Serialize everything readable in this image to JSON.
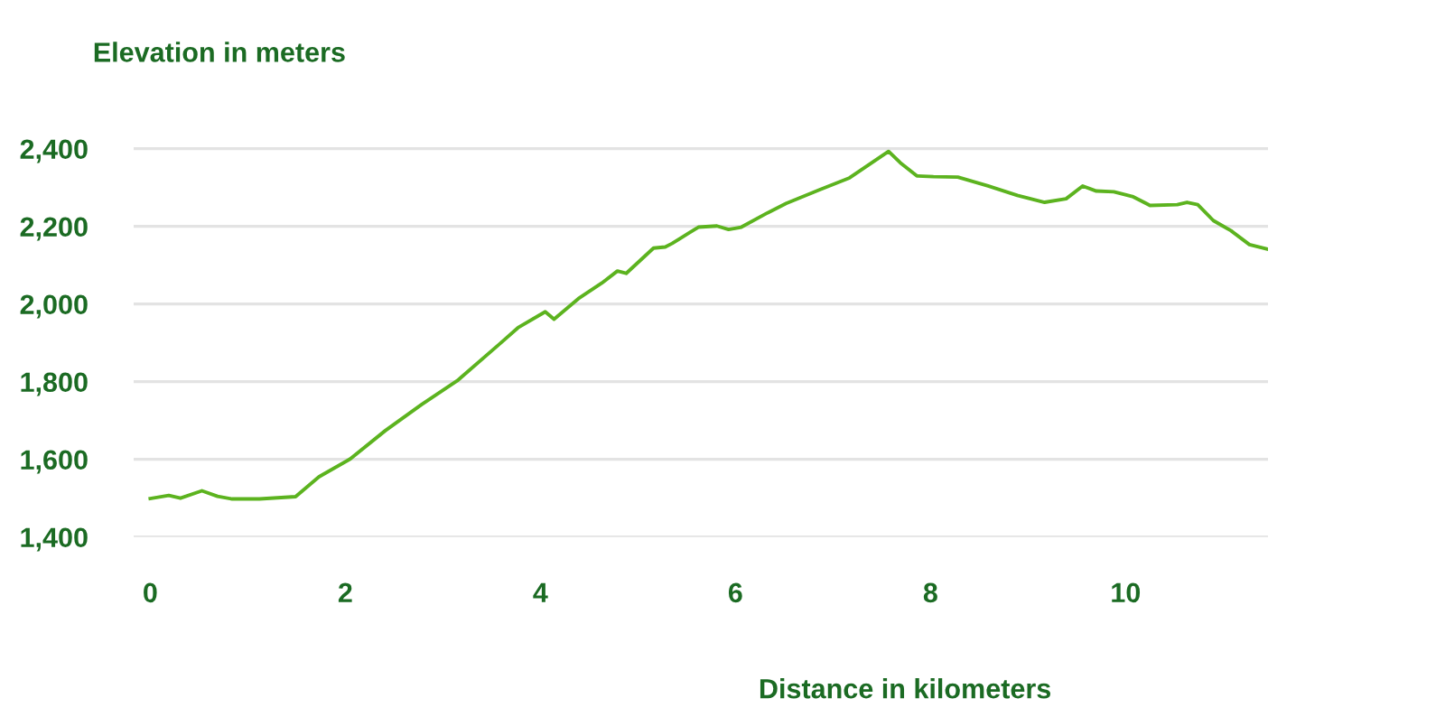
{
  "chart_data": {
    "type": "line",
    "xlabel": "Distance in kilometers",
    "ylabel": "Elevation in meters",
    "x": [
      0,
      0.19,
      0.31,
      0.53,
      0.69,
      0.84,
      1.12,
      1.49,
      1.73,
      2.05,
      2.41,
      2.78,
      3.15,
      3.59,
      3.77,
      4.05,
      4.14,
      4.39,
      4.63,
      4.79,
      4.88,
      5.16,
      5.28,
      5.35,
      5.44,
      5.62,
      5.81,
      5.93,
      6.06,
      6.33,
      6.52,
      6.86,
      7.17,
      7.57,
      7.69,
      7.86,
      8.03,
      8.28,
      8.59,
      8.89,
      9.17,
      9.39,
      9.56,
      9.7,
      9.88,
      10.07,
      10.25,
      10.53,
      10.63,
      10.74,
      10.9,
      11.08,
      11.27,
      11.46
    ],
    "series": [
      {
        "color": "#5cb31f",
        "values": [
          1499,
          1507,
          1500,
          1519,
          1505,
          1498,
          1498,
          1504,
          1555,
          1601,
          1674,
          1741,
          1803,
          1899,
          1939,
          1980,
          1961,
          2014,
          2054,
          2085,
          2079,
          2144,
          2147,
          2156,
          2170,
          2198,
          2201,
          2192,
          2198,
          2235,
          2259,
          2294,
          2325,
          2393,
          2364,
          2330,
          2328,
          2327,
          2304,
          2280,
          2262,
          2271,
          2304,
          2291,
          2289,
          2277,
          2254,
          2256,
          2262,
          2256,
          2215,
          2189,
          2153,
          2141
        ]
      }
    ],
    "xlim": [
      -0.17,
      11.46
    ],
    "ylim": [
      1400,
      2410
    ],
    "xticks": [
      0,
      2,
      4,
      6,
      8,
      10
    ],
    "yticks": [
      {
        "value": 1400,
        "label": "1,400"
      },
      {
        "value": 1600,
        "label": "1,600"
      },
      {
        "value": 1800,
        "label": "1,800"
      },
      {
        "value": 2000,
        "label": "2,000"
      },
      {
        "value": 2200,
        "label": "2,200"
      },
      {
        "value": 2400,
        "label": "2,400"
      }
    ],
    "grid": "y",
    "marker": "none",
    "line_style": "solid",
    "legend": false
  }
}
